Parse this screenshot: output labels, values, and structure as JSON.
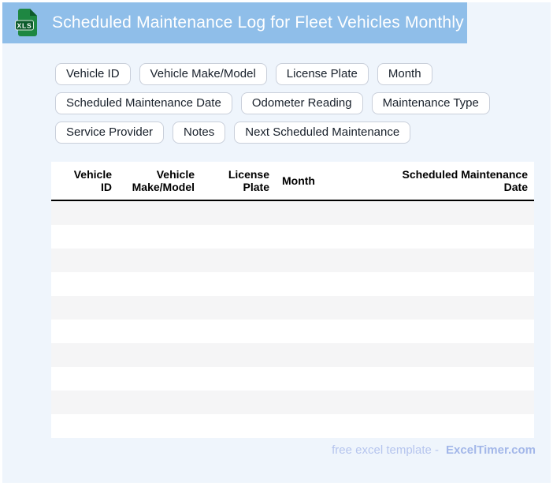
{
  "window": {
    "title": "Scheduled Maintenance Log for Fleet Vehicles Monthly",
    "file_icon_label": "XLS"
  },
  "field_chips": [
    "Vehicle ID",
    "Vehicle Make/Model",
    "License Plate",
    "Month",
    "Scheduled Maintenance Date",
    "Odometer Reading",
    "Maintenance Type",
    "Service Provider",
    "Notes",
    "Next Scheduled Maintenance"
  ],
  "table": {
    "columns": [
      "Vehicle\nID",
      "Vehicle\nMake/Model",
      "License\nPlate",
      "Month",
      "Scheduled Maintenance\nDate"
    ],
    "empty_row_count": 10
  },
  "footer": {
    "prefix": "free excel template -",
    "brand": "ExcelTimer.com"
  },
  "colors": {
    "titlebar": "#8FBEE9",
    "page_bg": "#EFF5FC",
    "row_alt": "#F5F5F6",
    "chip_border": "#C9CFDA",
    "ink": "#18202B",
    "footer_text": "#B6C5EE",
    "footer_brand": "#A3B7E9",
    "icon_green": "#1E8742",
    "icon_green_dark": "#0D5B2C"
  }
}
